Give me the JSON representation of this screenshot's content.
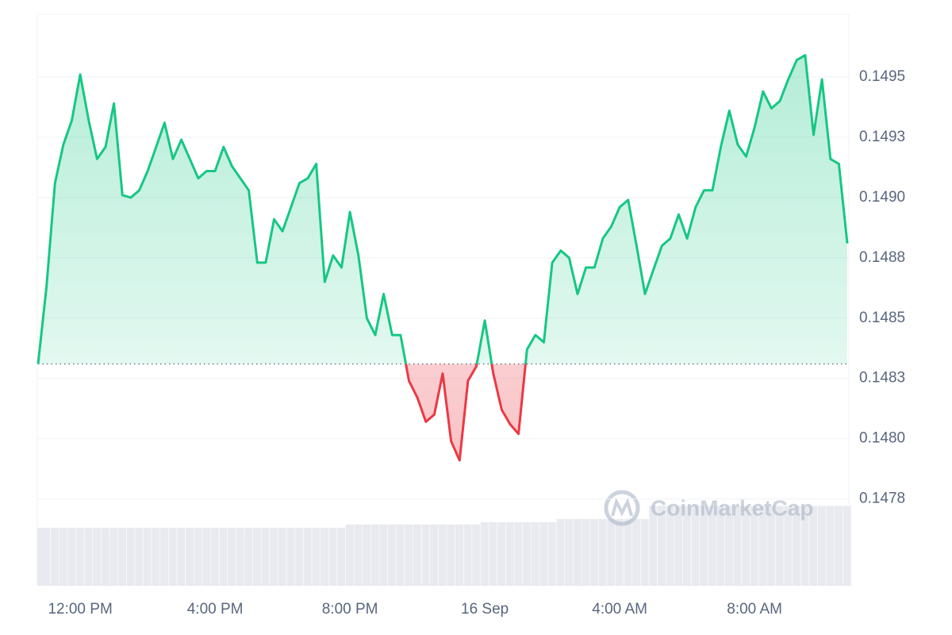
{
  "chart_data": {
    "type": "line",
    "categories": [
      null,
      null,
      null,
      null,
      null,
      "12:00 PM",
      null,
      null,
      null,
      null,
      null,
      null,
      null,
      null,
      null,
      null,
      null,
      null,
      null,
      null,
      null,
      "4:00 PM",
      null,
      null,
      null,
      null,
      null,
      null,
      null,
      null,
      null,
      null,
      null,
      null,
      null,
      null,
      null,
      "8:00 PM",
      null,
      null,
      null,
      null,
      null,
      null,
      null,
      null,
      null,
      null,
      null,
      null,
      null,
      null,
      null,
      "16 Sep",
      null,
      null,
      null,
      null,
      null,
      null,
      null,
      null,
      null,
      null,
      null,
      null,
      null,
      null,
      null,
      "4:00 AM",
      null,
      null,
      null,
      null,
      null,
      null,
      null,
      null,
      null,
      null,
      null,
      null,
      null,
      null,
      null,
      "8:00 AM",
      null,
      null,
      null,
      null,
      null,
      null,
      null,
      null,
      null,
      null,
      null
    ],
    "values": [
      0.14831,
      0.14863,
      0.14906,
      0.14922,
      0.14932,
      0.14951,
      0.14932,
      0.14916,
      0.14921,
      0.14939,
      0.14901,
      0.149,
      0.14903,
      0.14911,
      0.14921,
      0.14931,
      0.14916,
      0.14924,
      0.14916,
      0.14908,
      0.14911,
      0.14911,
      0.14921,
      0.14913,
      0.14908,
      0.14903,
      0.14873,
      0.14873,
      0.14891,
      0.14886,
      0.14896,
      0.14906,
      0.14908,
      0.14914,
      0.14865,
      0.14876,
      0.14871,
      0.14894,
      0.14876,
      0.1485,
      0.14843,
      0.1486,
      0.14843,
      0.14843,
      0.14824,
      0.14817,
      0.14807,
      0.1481,
      0.14827,
      0.14799,
      0.14791,
      0.14824,
      0.1483,
      0.14849,
      0.14827,
      0.14812,
      0.14806,
      0.14802,
      0.14837,
      0.14843,
      0.1484,
      0.14873,
      0.14878,
      0.14875,
      0.1486,
      0.14871,
      0.14871,
      0.14883,
      0.14888,
      0.14896,
      0.14899,
      0.1488,
      0.1486,
      0.1487,
      0.1488,
      0.14883,
      0.14893,
      0.14883,
      0.14896,
      0.14903,
      0.14903,
      0.14921,
      0.14936,
      0.14922,
      0.14917,
      0.14929,
      0.14944,
      0.14937,
      0.1494,
      0.14949,
      0.14957,
      0.14959,
      0.14926,
      0.14949,
      0.14916,
      0.14914,
      0.14881
    ],
    "color_up": "#16c784",
    "color_down": "#ea3943",
    "ylim": [
      0.14739,
      0.14976
    ],
    "yticks": [
      {
        "value": 0.14775,
        "label": "0.1478"
      },
      {
        "value": 0.148,
        "label": "0.1480"
      },
      {
        "value": 0.14825,
        "label": "0.1483"
      },
      {
        "value": 0.1485,
        "label": "0.1485"
      },
      {
        "value": 0.14875,
        "label": "0.1488"
      },
      {
        "value": 0.149,
        "label": "0.1490"
      },
      {
        "value": 0.14925,
        "label": "0.1493"
      },
      {
        "value": 0.1495,
        "label": "0.1495"
      }
    ],
    "grid": true,
    "volume": {
      "color": "#e8eaef",
      "ylim": [
        0,
        100
      ],
      "values": [
        53,
        53,
        53,
        53,
        53,
        53,
        53,
        53,
        53,
        53,
        53,
        53,
        53,
        53,
        53,
        53,
        53,
        53,
        53,
        53,
        53,
        53,
        53,
        53,
        53,
        53,
        53,
        53,
        53,
        53,
        53,
        53,
        53,
        53,
        53,
        53,
        53,
        56,
        56,
        56,
        56,
        56,
        56,
        56,
        56,
        56,
        56,
        56,
        56,
        56,
        56,
        56,
        56,
        58,
        58,
        58,
        58,
        58,
        58,
        58,
        58,
        58,
        61,
        61,
        61,
        61,
        61,
        61,
        61,
        61,
        61,
        61,
        61,
        73,
        73,
        73,
        73,
        73,
        73,
        73,
        73,
        73,
        73,
        73,
        73,
        73,
        73,
        73,
        73,
        73,
        73,
        73,
        73,
        73,
        73,
        73,
        73
      ]
    },
    "watermark": "CoinMarketCap"
  }
}
